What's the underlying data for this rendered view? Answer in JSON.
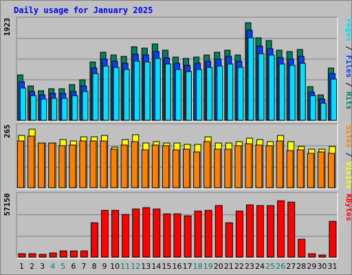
{
  "chart_data": {
    "type": "bar",
    "title": "Daily usage for January 2025",
    "categories": [
      "1",
      "2",
      "3",
      "4",
      "5",
      "6",
      "7",
      "8",
      "9",
      "10",
      "11",
      "12",
      "13",
      "14",
      "15",
      "16",
      "17",
      "18",
      "19",
      "20",
      "21",
      "22",
      "23",
      "24",
      "25",
      "26",
      "27",
      "28",
      "29",
      "30",
      "31"
    ],
    "weekend_days": [
      "4",
      "5",
      "11",
      "12",
      "18",
      "19",
      "25",
      "26"
    ],
    "colors": {
      "hits": "#00805c",
      "files": "#0040ff",
      "pages": "#00e0ff",
      "visits": "#ffff00",
      "sites": "#ff8000",
      "kbytes": "#ff0000",
      "weekend_label": "#00805c",
      "title": "#0000ff",
      "axis_text": "#000000"
    },
    "panels": [
      {
        "id": "hits-files-pages",
        "ymax_label": "1923",
        "ymax": 1923,
        "legend": [
          {
            "text": "Pages",
            "color": "#00e0ff"
          },
          {
            "text": " / ",
            "color": "#000000"
          },
          {
            "text": "Files",
            "color": "#0040ff"
          },
          {
            "text": " / ",
            "color": "#000000"
          },
          {
            "text": "Hits",
            "color": "#00805c"
          }
        ],
        "series": [
          {
            "name": "Hits",
            "values": [
              896,
              683,
              589,
              623,
              623,
              708,
              794,
              1154,
              1341,
              1290,
              1256,
              1450,
              1426,
              1504,
              1375,
              1248,
              1222,
              1248,
              1290,
              1341,
              1375,
              1290,
              1923,
              1622,
              1568,
              1375,
              1358,
              1392,
              663,
              496,
              1029
            ]
          },
          {
            "name": "Files",
            "values": [
              762,
              569,
              505,
              525,
              525,
              569,
              681,
              1029,
              1204,
              1164,
              1121,
              1299,
              1284,
              1349,
              1226,
              1121,
              1082,
              1121,
              1164,
              1204,
              1255,
              1164,
              1768,
              1460,
              1410,
              1230,
              1203,
              1255,
              561,
              418,
              920
            ]
          },
          {
            "name": "Pages",
            "values": [
              643,
              485,
              418,
              440,
              440,
              485,
              574,
              915,
              1075,
              1041,
              1000,
              1165,
              1154,
              1217,
              1111,
              1001,
              965,
              1000,
              1041,
              1075,
              1109,
              1041,
              1631,
              1316,
              1283,
              1109,
              1082,
              1130,
              484,
              338,
              811
            ]
          }
        ]
      },
      {
        "id": "visits-sites",
        "ymax_label": "265",
        "ymax": 265,
        "legend": [
          {
            "text": "Sites",
            "color": "#ff8000"
          },
          {
            "text": " / ",
            "color": "#000000"
          },
          {
            "text": "Visits",
            "color": "#ffff00"
          }
        ],
        "series": [
          {
            "name": "Visits",
            "values": [
              238,
              265,
              204,
              204,
              218,
              213,
              230,
              230,
              238,
              184,
              218,
              241,
              204,
              210,
              204,
              204,
              196,
              195,
              230,
              204,
              204,
              210,
              226,
              218,
              210,
              238,
              210,
              188,
              176,
              176,
              188
            ]
          },
          {
            "name": "Sites",
            "values": [
              213,
              233,
              204,
              204,
              189,
              193,
              213,
              213,
              213,
              176,
              193,
              209,
              173,
              193,
              189,
              171,
              176,
              161,
              209,
              176,
              176,
              189,
              200,
              193,
              189,
              213,
              168,
              173,
              156,
              161,
              156
            ]
          }
        ]
      },
      {
        "id": "kbytes",
        "ymax_label": "57150",
        "ymax": 57150,
        "legend": [
          {
            "text": "KBytes",
            "color": "#ff0000"
          }
        ],
        "series": [
          {
            "name": "KBytes",
            "values": [
              3600,
              3600,
              2600,
              4200,
              5800,
              5800,
              5800,
              33000,
              45300,
              45300,
              41300,
              46300,
              48000,
              46300,
              41900,
              41900,
              39600,
              44700,
              45300,
              49700,
              33000,
              44700,
              50300,
              49700,
              49700,
              54700,
              52900,
              17100,
              3600,
              1800,
              34700
            ]
          }
        ]
      }
    ]
  }
}
